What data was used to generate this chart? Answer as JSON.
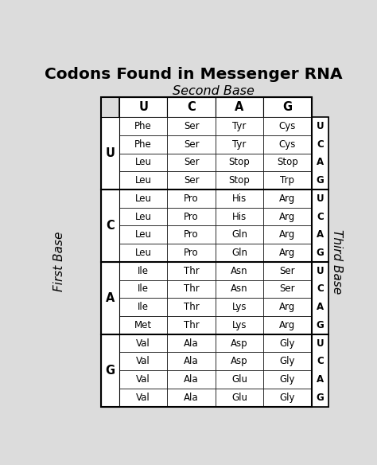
{
  "title": "Codons Found in Messenger RNA",
  "subtitle": "Second Base",
  "first_base_label": "First Base",
  "third_base_label": "Third Base",
  "second_bases": [
    "U",
    "C",
    "A",
    "G"
  ],
  "first_bases": [
    "U",
    "C",
    "A",
    "G"
  ],
  "third_bases": [
    "U",
    "C",
    "A",
    "G"
  ],
  "table": [
    [
      [
        "Phe",
        "Phe",
        "Leu",
        "Leu"
      ],
      [
        "Ser",
        "Ser",
        "Ser",
        "Ser"
      ],
      [
        "Tyr",
        "Tyr",
        "Stop",
        "Stop"
      ],
      [
        "Cys",
        "Cys",
        "Stop",
        "Trp"
      ]
    ],
    [
      [
        "Leu",
        "Leu",
        "Leu",
        "Leu"
      ],
      [
        "Pro",
        "Pro",
        "Pro",
        "Pro"
      ],
      [
        "His",
        "His",
        "Gln",
        "Gln"
      ],
      [
        "Arg",
        "Arg",
        "Arg",
        "Arg"
      ]
    ],
    [
      [
        "Ile",
        "Ile",
        "Ile",
        "Met"
      ],
      [
        "Thr",
        "Thr",
        "Thr",
        "Thr"
      ],
      [
        "Asn",
        "Asn",
        "Lys",
        "Lys"
      ],
      [
        "Ser",
        "Ser",
        "Arg",
        "Arg"
      ]
    ],
    [
      [
        "Val",
        "Val",
        "Val",
        "Val"
      ],
      [
        "Ala",
        "Ala",
        "Ala",
        "Ala"
      ],
      [
        "Asp",
        "Asp",
        "Glu",
        "Glu"
      ],
      [
        "Gly",
        "Gly",
        "Gly",
        "Gly"
      ]
    ]
  ],
  "bg_color": "#dcdcdc",
  "white": "#ffffff",
  "black": "#000000",
  "title_fontsize": 14.5,
  "subtitle_fontsize": 11.5,
  "header_fontsize": 10.5,
  "cell_fontsize": 8.5,
  "side_label_fontsize": 11
}
